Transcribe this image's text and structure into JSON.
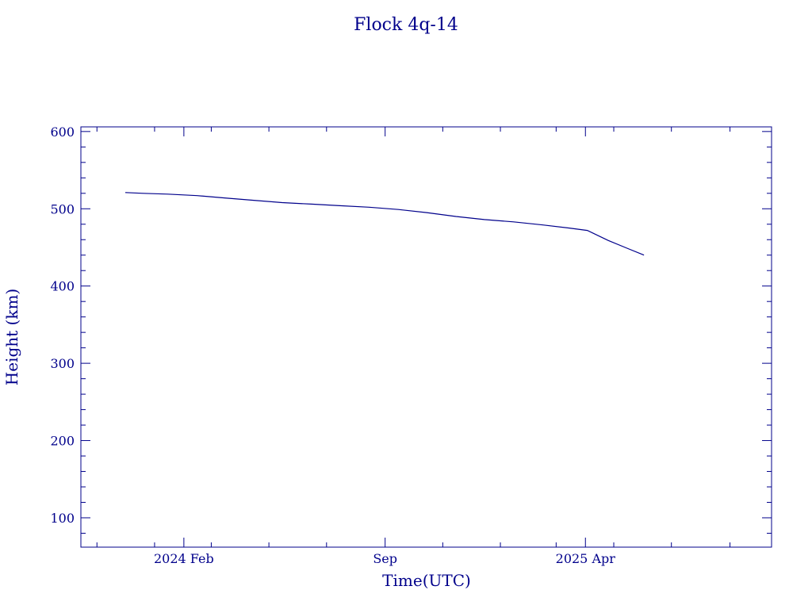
{
  "chart_data": {
    "type": "line",
    "title": "Flock 4q-14",
    "xlabel": "Time(UTC)",
    "ylabel": "Height (km)",
    "xlim": [
      "2023-10-15",
      "2025-10-15"
    ],
    "ylim": [
      62,
      606
    ],
    "x_ticks": [
      {
        "date": "2024-02-01",
        "label": "2024 Feb"
      },
      {
        "date": "2024-09-01",
        "label": "Sep"
      },
      {
        "date": "2025-04-01",
        "label": "2025 Apr"
      }
    ],
    "y_ticks": [
      100,
      200,
      300,
      400,
      500,
      600
    ],
    "grid": false,
    "colors": {
      "axis": "#00008b",
      "series": "#00008b",
      "background": "#ffffff"
    },
    "series": [
      {
        "x": [
          "2023-12-01",
          "2023-12-20",
          "2024-01-15",
          "2024-02-15",
          "2024-03-15",
          "2024-04-15",
          "2024-05-15",
          "2024-06-15",
          "2024-07-15",
          "2024-08-15",
          "2024-09-15",
          "2024-10-15",
          "2024-11-15",
          "2024-12-15",
          "2025-01-15",
          "2025-02-15",
          "2025-03-15",
          "2025-04-03",
          "2025-04-25",
          "2025-05-15",
          "2025-06-02"
        ],
        "y": [
          521,
          520,
          519,
          517,
          514,
          511,
          508,
          506,
          504,
          502,
          499,
          495,
          490,
          486,
          483,
          479,
          475,
          472,
          459,
          449,
          440
        ]
      }
    ]
  }
}
